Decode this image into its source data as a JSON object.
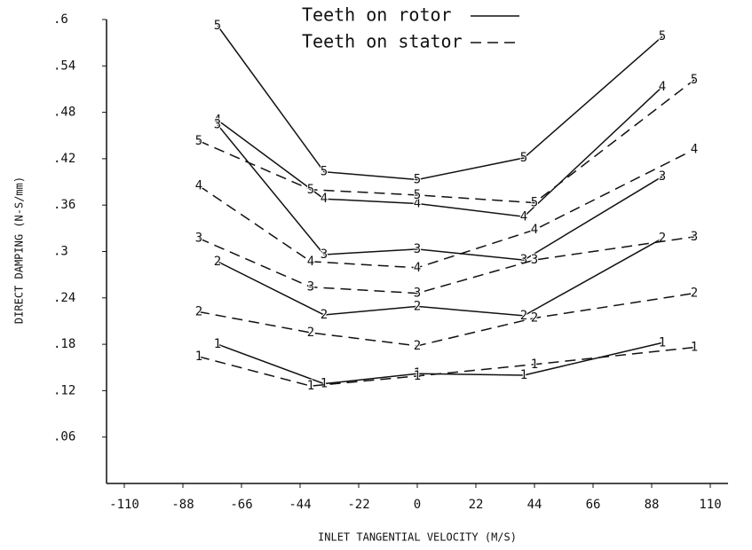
{
  "chart_data": {
    "type": "line",
    "xlabel": "INLET TANGENTIAL VELOCITY (M/S)",
    "ylabel": "DIRECT DAMPING (N-S/mm)",
    "legend": [
      {
        "label": "Teeth on rotor",
        "style": "solid"
      },
      {
        "label": "Teeth on stator",
        "style": "dashed"
      }
    ],
    "xlim": [
      -110,
      110
    ],
    "xticks": [
      -110,
      -88,
      -66,
      -44,
      -22,
      0,
      22,
      44,
      66,
      88,
      110
    ],
    "ylim": [
      0,
      0.6
    ],
    "yticks": [
      {
        "value": 0.06,
        "label": ".06"
      },
      {
        "value": 0.12,
        "label": ".12"
      },
      {
        "value": 0.18,
        "label": ".18"
      },
      {
        "value": 0.24,
        "label": ".24"
      },
      {
        "value": 0.3,
        "label": ".3"
      },
      {
        "value": 0.36,
        "label": ".36"
      },
      {
        "value": 0.42,
        "label": ".42"
      },
      {
        "value": 0.48,
        "label": ".48"
      },
      {
        "value": 0.54,
        "label": ".54"
      },
      {
        "value": 0.6,
        "label": ".6"
      }
    ],
    "series": [
      {
        "name": "5",
        "style": "solid",
        "color": "#111",
        "x": [
          -75,
          -35,
          0,
          40,
          92
        ],
        "values": [
          0.592,
          0.403,
          0.393,
          0.421,
          0.578
        ]
      },
      {
        "name": "4",
        "style": "solid",
        "color": "#111",
        "x": [
          -75,
          -35,
          0,
          40,
          92
        ],
        "values": [
          0.47,
          0.368,
          0.362,
          0.345,
          0.513
        ]
      },
      {
        "name": "3",
        "style": "solid",
        "color": "#111",
        "x": [
          -75,
          -35,
          0,
          40,
          92
        ],
        "values": [
          0.464,
          0.296,
          0.303,
          0.289,
          0.397
        ]
      },
      {
        "name": "2",
        "style": "solid",
        "color": "#111",
        "x": [
          -75,
          -35,
          0,
          40,
          92
        ],
        "values": [
          0.287,
          0.218,
          0.229,
          0.217,
          0.317
        ]
      },
      {
        "name": "1",
        "style": "solid",
        "color": "#111",
        "x": [
          -75,
          -35,
          0,
          40,
          92
        ],
        "values": [
          0.18,
          0.129,
          0.142,
          0.14,
          0.182
        ]
      },
      {
        "name": "5",
        "style": "dashed",
        "color": "#111",
        "x": [
          -82,
          -40,
          0,
          44,
          104
        ],
        "values": [
          0.443,
          0.38,
          0.373,
          0.363,
          0.522
        ]
      },
      {
        "name": "4",
        "style": "dashed",
        "color": "#111",
        "x": [
          -82,
          -40,
          0,
          44,
          104
        ],
        "values": [
          0.385,
          0.287,
          0.279,
          0.328,
          0.432
        ]
      },
      {
        "name": "3",
        "style": "dashed",
        "color": "#111",
        "x": [
          -82,
          -40,
          0,
          44,
          104
        ],
        "values": [
          0.317,
          0.254,
          0.246,
          0.289,
          0.319
        ]
      },
      {
        "name": "2",
        "style": "dashed",
        "color": "#111",
        "x": [
          -82,
          -40,
          0,
          44,
          104
        ],
        "values": [
          0.222,
          0.195,
          0.178,
          0.214,
          0.246
        ]
      },
      {
        "name": "1",
        "style": "dashed",
        "color": "#111",
        "x": [
          -82,
          -40,
          0,
          44,
          104
        ],
        "values": [
          0.164,
          0.126,
          0.139,
          0.154,
          0.176
        ]
      }
    ]
  }
}
